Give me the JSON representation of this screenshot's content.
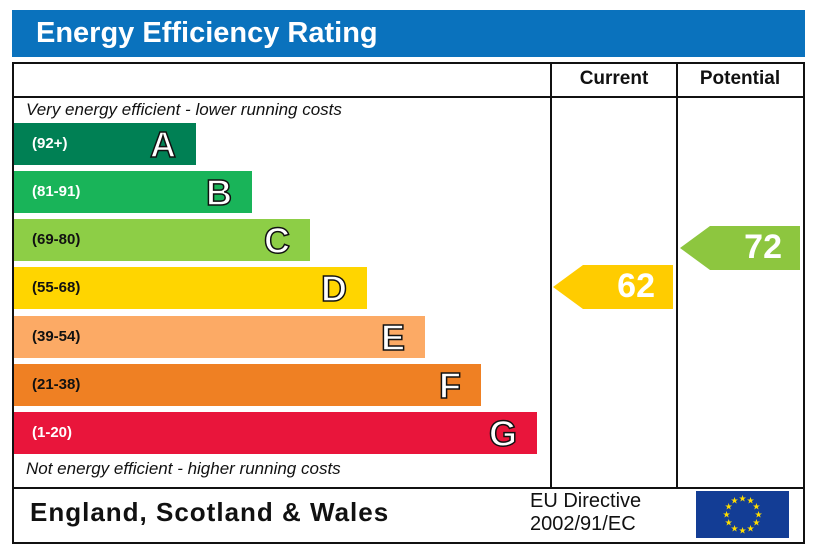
{
  "title": "Energy Efficiency Rating",
  "columns": {
    "current": "Current",
    "potential": "Potential"
  },
  "top_note": "Very energy efficient - lower running costs",
  "bottom_note": "Not energy efficient - higher running costs",
  "footer": {
    "region": "England, Scotland & Wales",
    "directive_line1": "EU Directive",
    "directive_line2": "2002/91/EC",
    "flag_icon": "eu-flag-icon"
  },
  "chart_data": {
    "type": "bar",
    "categories": [
      "A",
      "B",
      "C",
      "D",
      "E",
      "F",
      "G"
    ],
    "ranges": [
      "(92+)",
      "(81-91)",
      "(69-80)",
      "(55-68)",
      "(39-54)",
      "(21-38)",
      "(1-20)"
    ],
    "colors": [
      "#008054",
      "#19b459",
      "#8dce46",
      "#ffd500",
      "#fcaa65",
      "#ef8023",
      "#e9153b"
    ],
    "range_text_colors": [
      "#ffffff",
      "#ffffff",
      "#111111",
      "#111111",
      "#111111",
      "#111111",
      "#ffffff"
    ],
    "current": {
      "value": 62,
      "band": "D",
      "color": "#ffcc00"
    },
    "potential": {
      "value": 72,
      "band": "C",
      "color": "#8dc63f"
    }
  }
}
